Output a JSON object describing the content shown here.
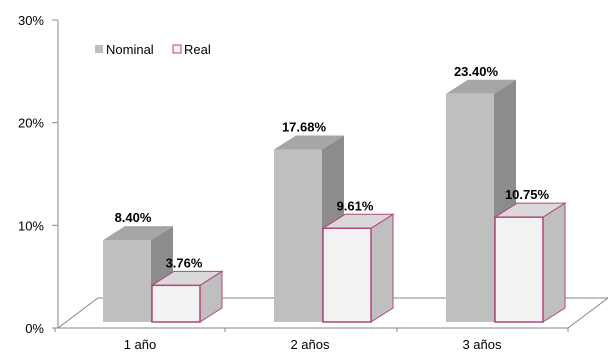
{
  "chart_data": {
    "type": "bar",
    "categories": [
      "1 año",
      "2 años",
      "3 años"
    ],
    "series": [
      {
        "name": "Nominal",
        "values": [
          8.4,
          17.68,
          23.4
        ],
        "labels": [
          "8.40%",
          "17.68%",
          "23.40%"
        ],
        "color": "#bfbfbf"
      },
      {
        "name": "Real",
        "values": [
          3.76,
          9.61,
          10.75
        ],
        "labels": [
          "3.76%",
          "9.61%",
          "10.75%"
        ],
        "color": "#f2f2f2",
        "edge": "#b0477f"
      }
    ],
    "y_ticks": [
      "0%",
      "10%",
      "20%",
      "30%"
    ],
    "ylim": [
      0,
      30
    ],
    "legend_position": "top-left",
    "grid": false
  }
}
